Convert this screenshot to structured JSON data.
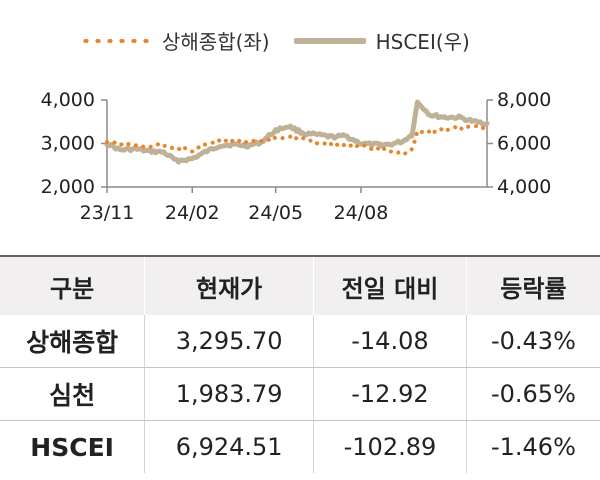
{
  "chart_data": {
    "type": "line",
    "legend": [
      {
        "label": "상해종합(좌)",
        "style": "dotted",
        "color": "#E8852C"
      },
      {
        "label": "HSCEI(우)",
        "style": "solid",
        "color": "#BFB195"
      }
    ],
    "x_ticks": [
      "23/11",
      "24/02",
      "24/05",
      "24/08"
    ],
    "y_left": {
      "ticks": [
        "2,000",
        "3,000",
        "4,000"
      ],
      "range": [
        2000,
        4000
      ]
    },
    "y_right": {
      "ticks": [
        "4,000",
        "6,000",
        "8,000"
      ],
      "range": [
        4000,
        8000
      ]
    },
    "series": [
      {
        "name": "상해종합(좌)",
        "axis": "left",
        "x": [
          "2023-11-01",
          "2023-11-15",
          "2023-12-01",
          "2023-12-15",
          "2024-01-01",
          "2024-01-15",
          "2024-02-01",
          "2024-02-15",
          "2024-03-01",
          "2024-03-15",
          "2024-04-01",
          "2024-04-15",
          "2024-05-01",
          "2024-05-15",
          "2024-06-01",
          "2024-06-15",
          "2024-07-01",
          "2024-07-15",
          "2024-08-01",
          "2024-08-15",
          "2024-09-01",
          "2024-09-15",
          "2024-09-25",
          "2024-10-01",
          "2024-10-15",
          "2024-11-01",
          "2024-11-15",
          "2024-12-01",
          "2024-12-15"
        ],
        "values": [
          3030,
          2990,
          2960,
          2930,
          2960,
          2900,
          2850,
          2990,
          3040,
          3050,
          3050,
          3030,
          3120,
          3170,
          3100,
          3030,
          2980,
          2970,
          2940,
          2870,
          2840,
          2730,
          2860,
          3300,
          3280,
          3320,
          3370,
          3400,
          3295.7
        ]
      },
      {
        "name": "HSCEI(우)",
        "axis": "right",
        "x": [
          "2023-11-01",
          "2023-11-15",
          "2023-12-01",
          "2023-12-15",
          "2024-01-01",
          "2024-01-15",
          "2024-02-01",
          "2024-02-15",
          "2024-03-01",
          "2024-03-15",
          "2024-04-01",
          "2024-04-15",
          "2024-05-01",
          "2024-05-15",
          "2024-06-01",
          "2024-06-15",
          "2024-07-01",
          "2024-07-15",
          "2024-08-01",
          "2024-08-15",
          "2024-09-01",
          "2024-09-15",
          "2024-09-25",
          "2024-10-01",
          "2024-10-15",
          "2024-11-01",
          "2024-11-15",
          "2024-12-01",
          "2024-12-15"
        ],
        "values": [
          6000,
          5700,
          5750,
          5650,
          5600,
          5200,
          5300,
          5600,
          5900,
          5950,
          5900,
          6050,
          6600,
          6800,
          6450,
          6400,
          6300,
          6350,
          6000,
          5950,
          5950,
          6100,
          6400,
          7900,
          7300,
          7200,
          7200,
          7000,
          6924.51
        ]
      }
    ]
  },
  "table": {
    "headers": [
      "구분",
      "현재가",
      "전일 대비",
      "등락률"
    ],
    "rows": [
      {
        "name": "상해종합",
        "price": "3,295.70",
        "change": "-14.08",
        "pct": "-0.43%"
      },
      {
        "name": "심천",
        "price": "1,983.79",
        "change": "-12.92",
        "pct": "-0.65%"
      },
      {
        "name": "HSCEI",
        "price": "6,924.51",
        "change": "-102.89",
        "pct": "-1.46%"
      }
    ]
  },
  "colors": {
    "orange": "#E8852C",
    "khaki": "#BFB195",
    "header_bg": "#F1EFEF",
    "rule": "#6D6255"
  }
}
